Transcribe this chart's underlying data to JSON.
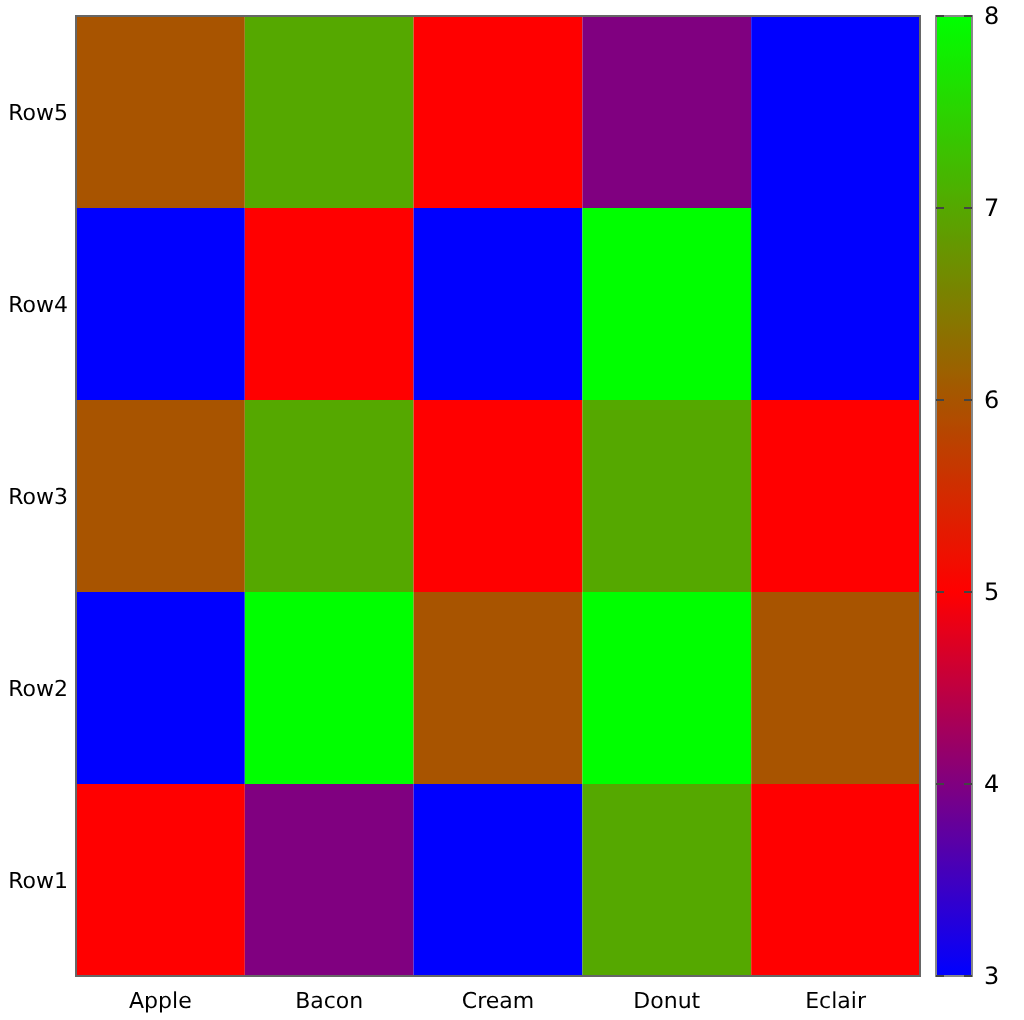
{
  "chart_data": {
    "type": "heatmap",
    "categories": [
      "Apple",
      "Bacon",
      "Cream",
      "Donut",
      "Eclair"
    ],
    "y_categories": [
      "Row5",
      "Row4",
      "Row3",
      "Row2",
      "Row1"
    ],
    "cells": [
      [
        6,
        7,
        5,
        4,
        3
      ],
      [
        3,
        5,
        3,
        8,
        3
      ],
      [
        6,
        7,
        5,
        7,
        5
      ],
      [
        3,
        8,
        6,
        8,
        6
      ],
      [
        5,
        4,
        3,
        7,
        5
      ]
    ],
    "clim": [
      3,
      8
    ],
    "cticks": [
      3,
      4,
      5,
      6,
      7,
      8
    ]
  }
}
